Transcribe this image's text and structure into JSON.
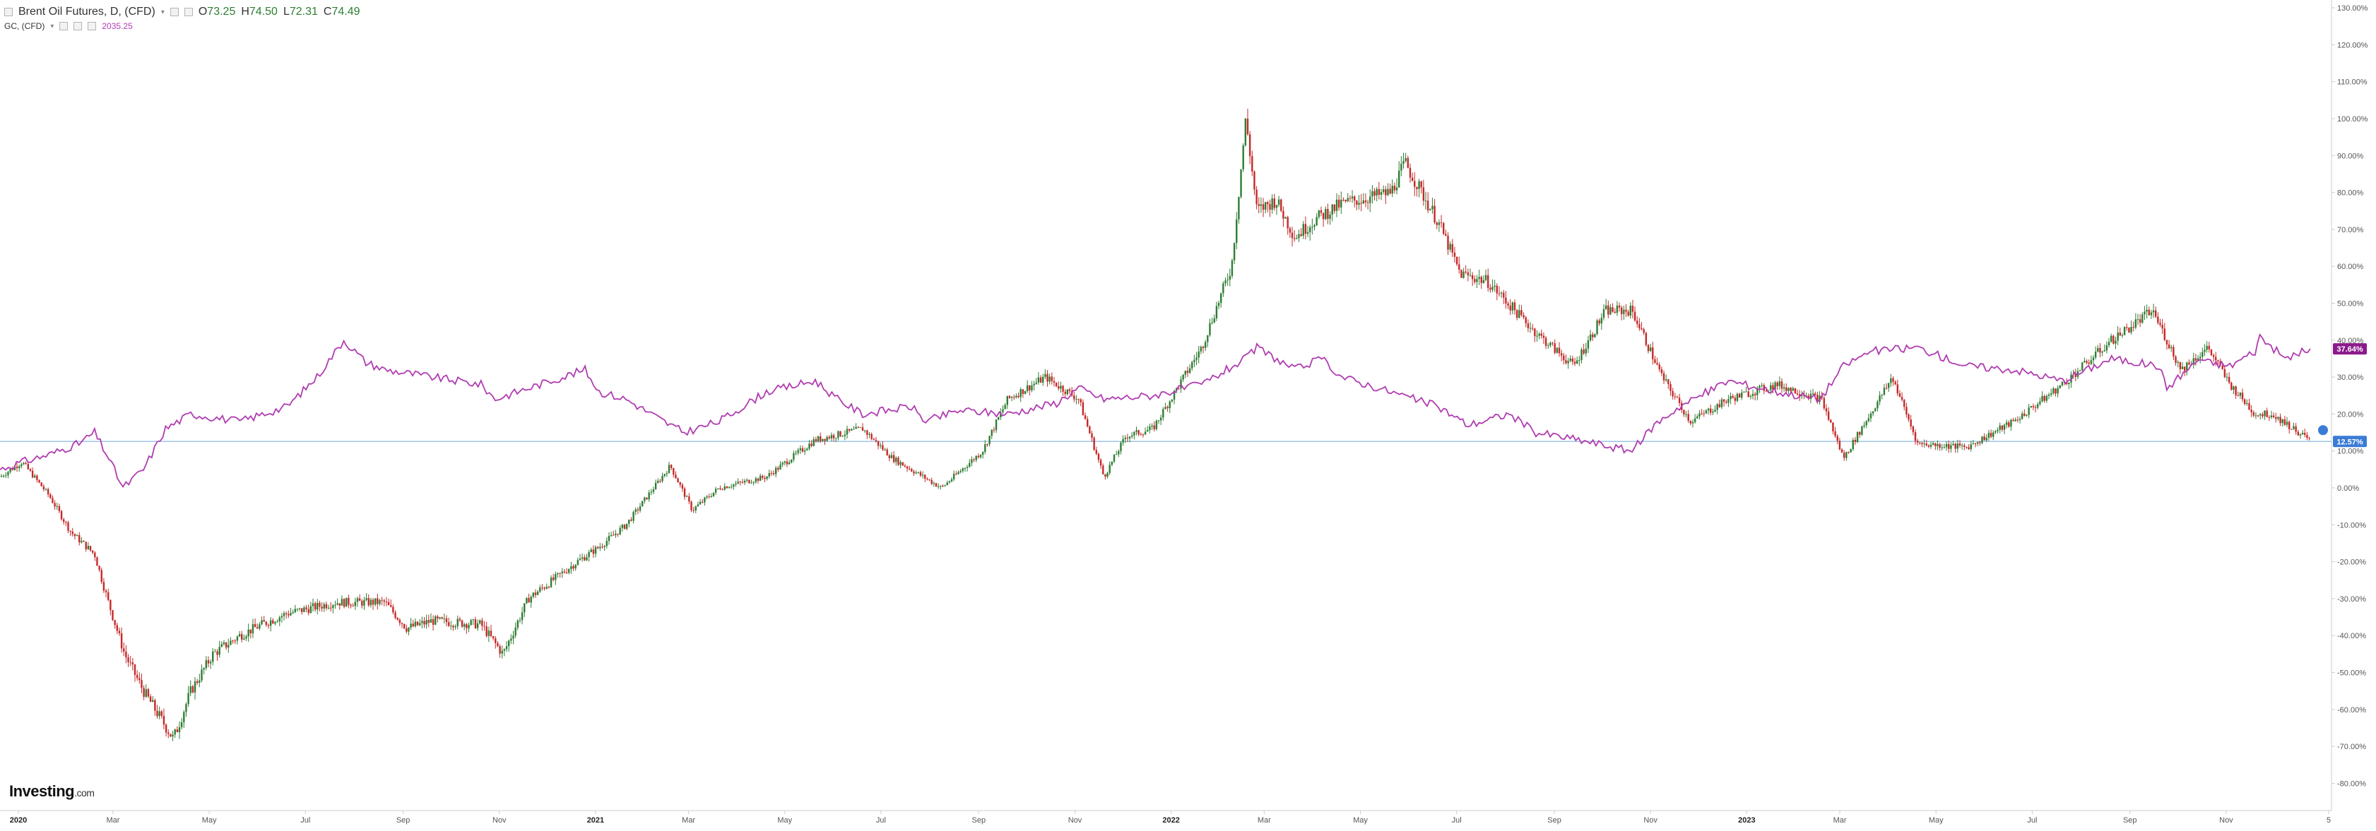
{
  "legend": {
    "brent": {
      "title": "Brent Oil Futures, D, (CFD)",
      "open_label": "O",
      "open": "73.25",
      "high_label": "H",
      "high": "74.50",
      "low_label": "L",
      "low": "72.31",
      "close_label": "C",
      "close": "74.49"
    },
    "gold": {
      "title": "GC, (CFD)",
      "value": "2035.25"
    }
  },
  "brand": {
    "name": "Investing",
    "suffix": ".com"
  },
  "icons": [
    "collapse-icon",
    "settings-icon",
    "close-icon",
    "scroll-to-latest-icon"
  ],
  "colors": {
    "up_candle": "#2e7d32",
    "down_candle": "#c62828",
    "gold_line": "#b03cb0",
    "brent_price_line": "#9ec5e8",
    "brent_tag": "#3a7bd5",
    "gold_tag": "#8b1a8b",
    "grid_axis": "#cccccc"
  },
  "chart_data": {
    "type": "line",
    "title": "",
    "xlabel": "",
    "ylabel": "",
    "ylim": [
      -85,
      132
    ],
    "y_scale": "percent",
    "grid": false,
    "legend_position": "top-left",
    "x_ticks": [
      "2020",
      "Mar",
      "May",
      "Jul",
      "Sep",
      "Nov",
      "2021",
      "Mar",
      "May",
      "Jul",
      "Sep",
      "Nov",
      "2022",
      "Mar",
      "May",
      "Jul",
      "Sep",
      "Nov",
      "2023",
      "Mar",
      "May",
      "Jul",
      "Sep",
      "Nov",
      "5"
    ],
    "y_ticks": [
      "130.00%",
      "120.00%",
      "110.00%",
      "100.00%",
      "90.00%",
      "80.00%",
      "70.00%",
      "60.00%",
      "50.00%",
      "40.00%",
      "30.00%",
      "20.00%",
      "10.00%",
      "0.00%",
      "-10.00%",
      "-20.00%",
      "-30.00%",
      "-40.00%",
      "-50.00%",
      "-60.00%",
      "-70.00%",
      "-80.00%"
    ],
    "series": [
      {
        "name": "Brent Oil Futures, D, (CFD)",
        "style": "candlestick",
        "last_label": "12.57%",
        "x": [
          "2020-01-01",
          "2020-01-15",
          "2020-02-01",
          "2020-02-15",
          "2020-03-01",
          "2020-03-09",
          "2020-03-20",
          "2020-04-01",
          "2020-04-20",
          "2020-05-01",
          "2020-05-15",
          "2020-06-01",
          "2020-06-15",
          "2020-07-01",
          "2020-08-01",
          "2020-09-01",
          "2020-09-15",
          "2020-10-01",
          "2020-11-01",
          "2020-11-15",
          "2020-12-01",
          "2021-01-01",
          "2021-01-15",
          "2021-02-01",
          "2021-03-01",
          "2021-03-15",
          "2021-04-01",
          "2021-05-01",
          "2021-06-01",
          "2021-07-01",
          "2021-07-20",
          "2021-08-20",
          "2021-09-15",
          "2021-10-01",
          "2021-10-25",
          "2021-11-15",
          "2021-12-01",
          "2021-12-15",
          "2022-01-01",
          "2022-02-01",
          "2022-02-20",
          "2022-03-01",
          "2022-03-08",
          "2022-03-20",
          "2022-04-01",
          "2022-04-15",
          "2022-05-01",
          "2022-06-01",
          "2022-06-10",
          "2022-07-01",
          "2022-07-15",
          "2022-08-01",
          "2022-09-01",
          "2022-09-25",
          "2022-10-15",
          "2022-11-01",
          "2022-11-20",
          "2022-12-08",
          "2023-01-01",
          "2023-02-01",
          "2023-03-01",
          "2023-03-15",
          "2023-04-01",
          "2023-04-15",
          "2023-05-01",
          "2023-06-01",
          "2023-07-01",
          "2023-08-01",
          "2023-09-01",
          "2023-09-27",
          "2023-10-15",
          "2023-11-01",
          "2023-11-15",
          "2023-12-01",
          "2023-12-12",
          "2024-01-01",
          "2024-01-05"
        ],
        "y": [
          3,
          7,
          -2,
          -12,
          -18,
          -30,
          -45,
          -55,
          -68,
          -55,
          -45,
          -40,
          -37,
          -34,
          -31,
          -31,
          -38,
          -36,
          -37,
          -45,
          -30,
          -20,
          -16,
          -10,
          6,
          -6,
          0,
          3,
          13,
          16,
          8,
          0,
          10,
          24,
          30,
          24,
          3,
          14,
          16,
          38,
          60,
          100,
          75,
          78,
          68,
          73,
          77,
          80,
          88,
          72,
          58,
          56,
          42,
          33,
          48,
          48,
          30,
          18,
          24,
          28,
          24,
          8,
          20,
          30,
          12,
          11,
          18,
          28,
          40,
          48,
          32,
          38,
          28,
          20,
          20,
          14,
          12.57
        ]
      },
      {
        "name": "GC, (CFD)",
        "style": "line",
        "last_label": "37.64%",
        "x": [
          "2020-01-01",
          "2020-01-15",
          "2020-02-01",
          "2020-02-20",
          "2020-03-01",
          "2020-03-10",
          "2020-03-19",
          "2020-04-01",
          "2020-04-15",
          "2020-05-01",
          "2020-06-01",
          "2020-07-01",
          "2020-07-20",
          "2020-08-06",
          "2020-08-20",
          "2020-09-01",
          "2020-10-01",
          "2020-11-01",
          "2020-11-10",
          "2020-12-01",
          "2021-01-06",
          "2021-01-15",
          "2021-02-01",
          "2021-03-01",
          "2021-03-10",
          "2021-04-01",
          "2021-05-01",
          "2021-06-01",
          "2021-06-15",
          "2021-07-01",
          "2021-08-01",
          "2021-08-10",
          "2021-09-01",
          "2021-10-01",
          "2021-11-01",
          "2021-11-15",
          "2021-12-01",
          "2022-01-01",
          "2022-02-01",
          "2022-03-01",
          "2022-03-08",
          "2022-04-01",
          "2022-04-18",
          "2022-05-01",
          "2022-06-01",
          "2022-07-01",
          "2022-07-20",
          "2022-08-15",
          "2022-09-01",
          "2022-09-28",
          "2022-10-20",
          "2022-11-01",
          "2022-11-15",
          "2022-12-01",
          "2023-01-01",
          "2023-02-01",
          "2023-02-28",
          "2023-03-15",
          "2023-04-01",
          "2023-05-01",
          "2023-06-01",
          "2023-07-01",
          "2023-08-01",
          "2023-09-01",
          "2023-10-01",
          "2023-10-06",
          "2023-10-27",
          "2023-11-01",
          "2023-11-15",
          "2023-12-01",
          "2023-12-04",
          "2023-12-20",
          "2024-01-05"
        ],
        "y": [
          5,
          7,
          9,
          12,
          15,
          8,
          0,
          5,
          16,
          20,
          18,
          22,
          30,
          40,
          34,
          32,
          30,
          28,
          24,
          27,
          32,
          26,
          24,
          17,
          15,
          18,
          26,
          29,
          24,
          20,
          22,
          18,
          21,
          20,
          23,
          27,
          24,
          25,
          28,
          35,
          38,
          32,
          35,
          30,
          26,
          22,
          17,
          20,
          15,
          13,
          11,
          10,
          17,
          22,
          29,
          26,
          24,
          33,
          37,
          38,
          33,
          32,
          29,
          35,
          33,
          27,
          35,
          34,
          33,
          37,
          41,
          35,
          37.64
        ]
      }
    ]
  }
}
